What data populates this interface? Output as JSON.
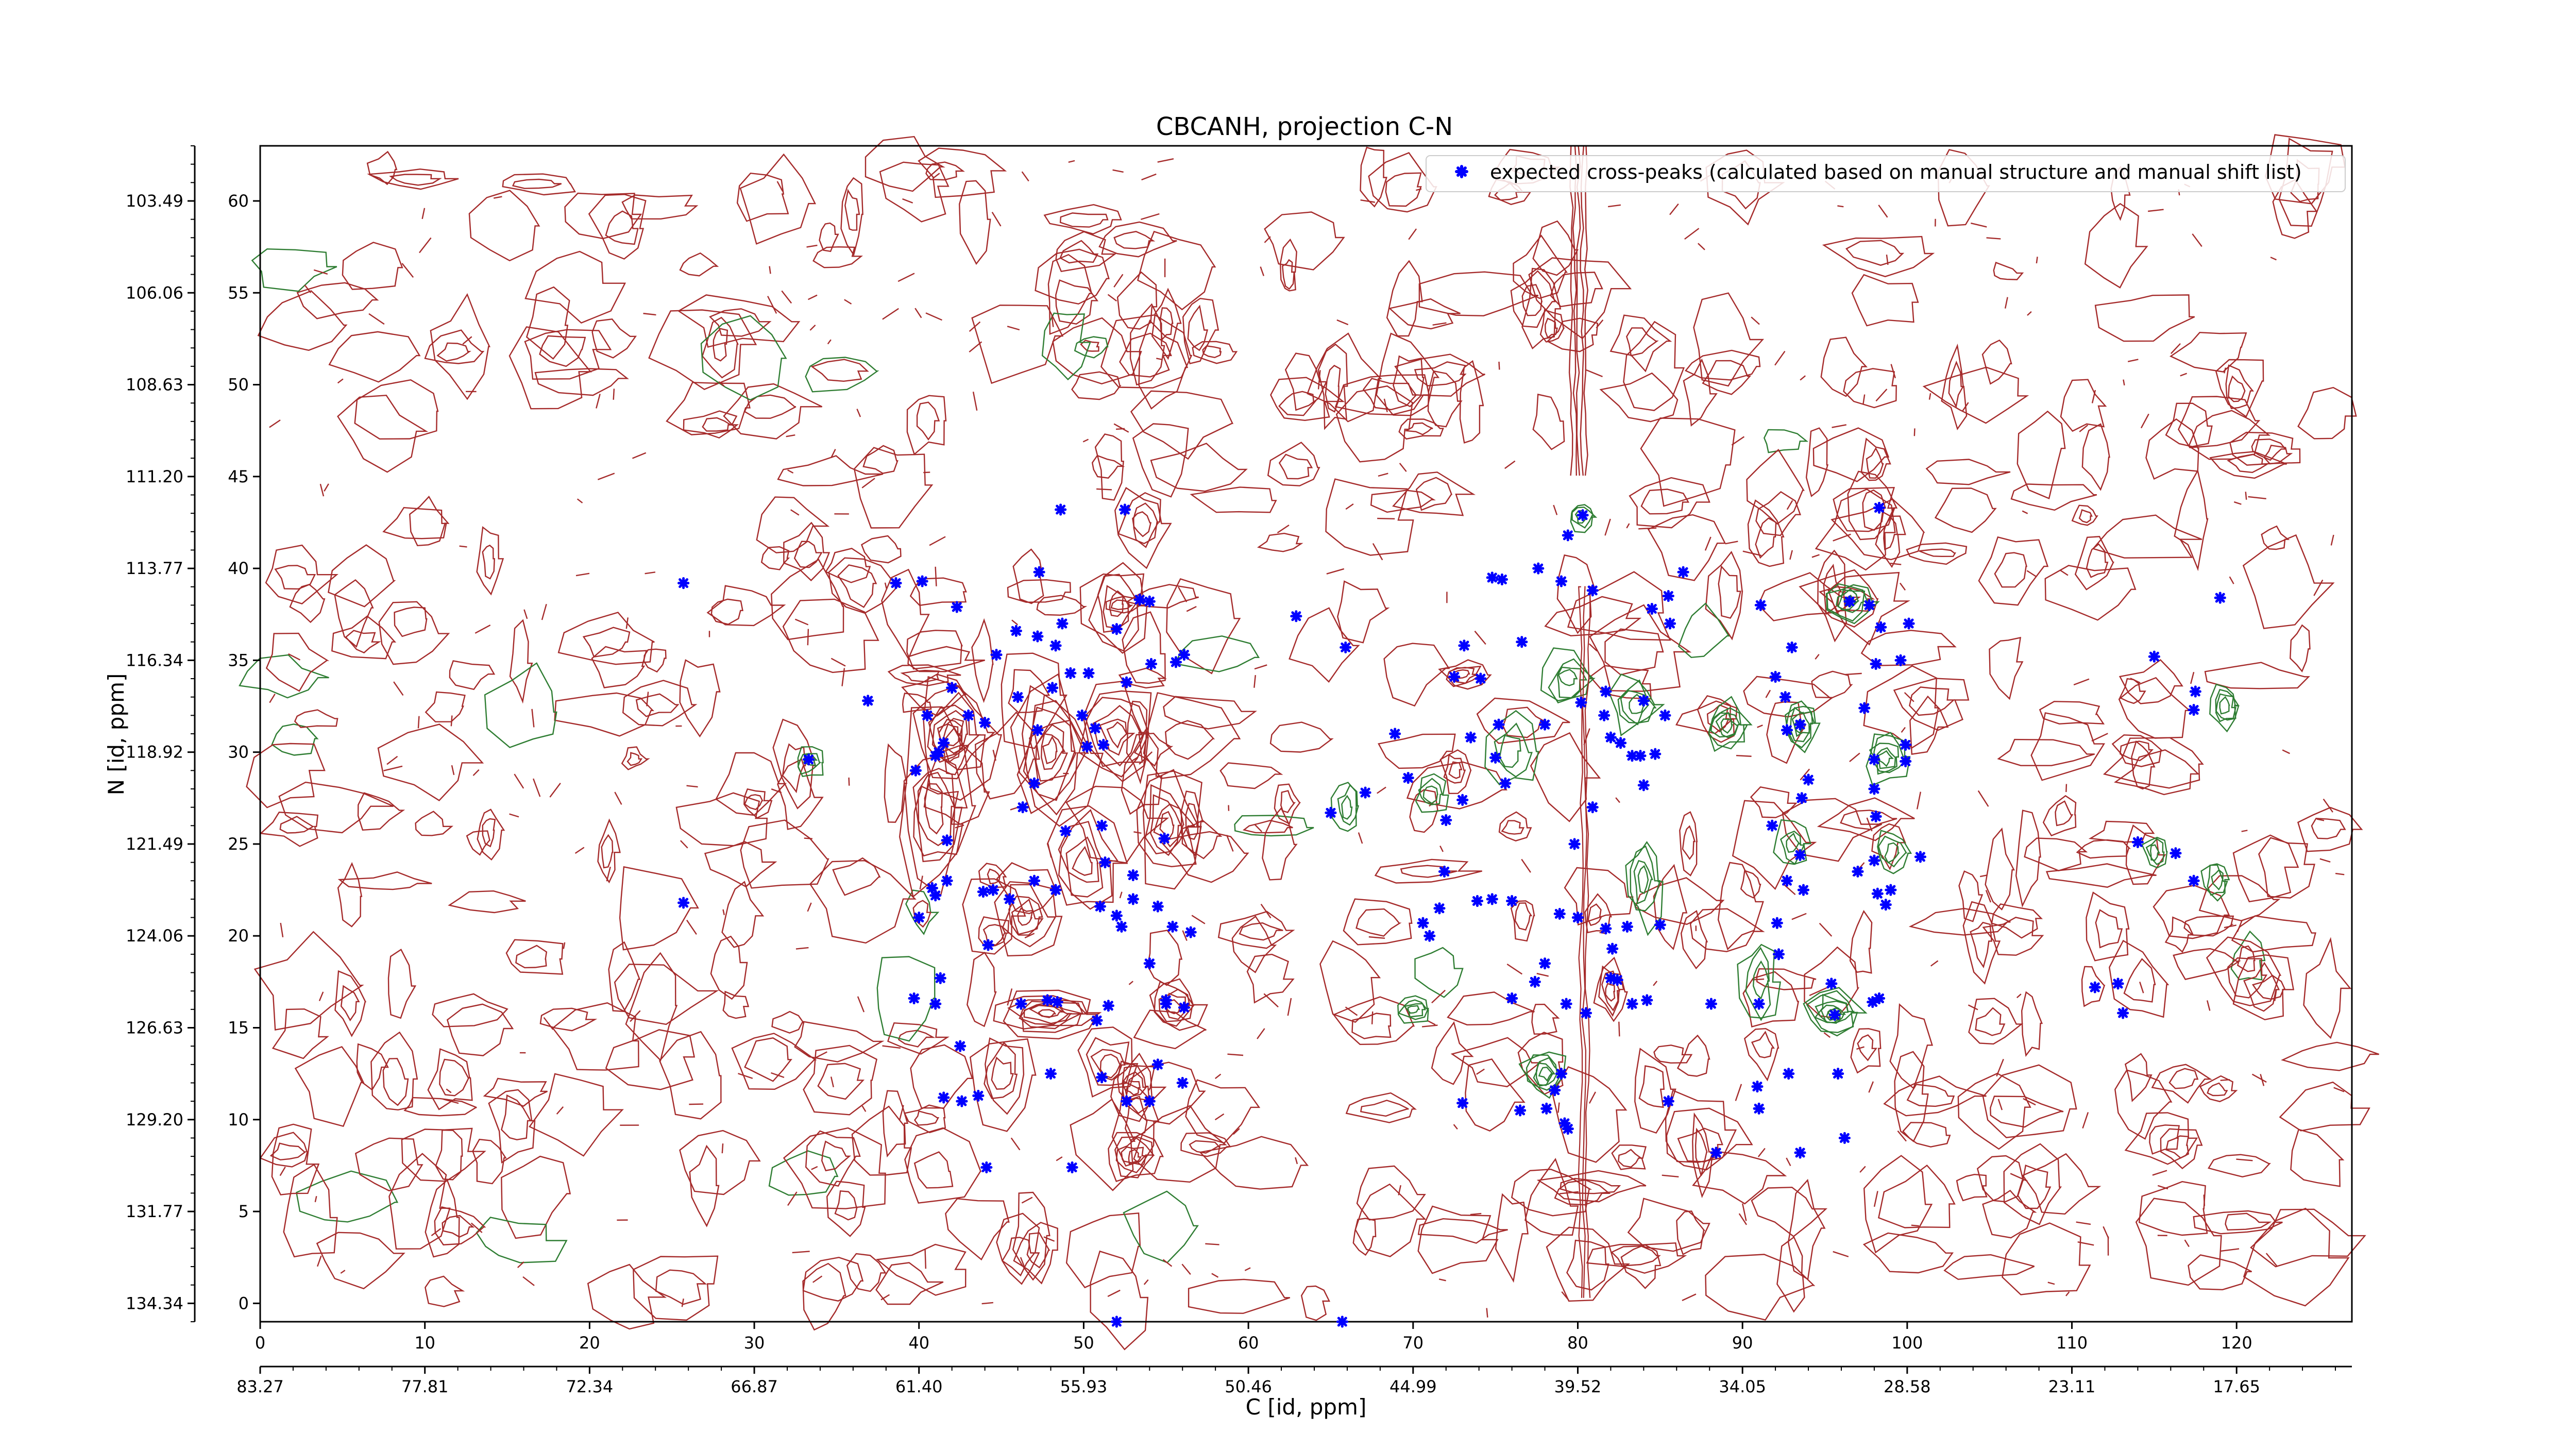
{
  "chart_data": {
    "type": "scatter",
    "title": "CBCANH, projection C-N",
    "xlabel": "C [id, ppm]",
    "ylabel": "N [id, ppm]",
    "xlim": [
      0,
      127
    ],
    "ylim": [
      -1,
      63
    ],
    "x_ticks": [
      0,
      10,
      20,
      30,
      40,
      50,
      60,
      70,
      80,
      90,
      100,
      110,
      120
    ],
    "y_ticks": [
      0,
      5,
      10,
      15,
      20,
      25,
      30,
      35,
      40,
      45,
      50,
      55,
      60
    ],
    "x_ppm_ticks": [
      "83.27",
      "77.81",
      "72.34",
      "66.87",
      "61.40",
      "55.93",
      "50.46",
      "44.99",
      "39.52",
      "34.05",
      "28.58",
      "23.11",
      "17.65"
    ],
    "y_ppm_ticks": [
      "134.34",
      "131.77",
      "129.20",
      "126.63",
      "124.06",
      "121.49",
      "118.92",
      "116.34",
      "113.77",
      "111.20",
      "108.63",
      "106.06",
      "103.49"
    ],
    "legend": {
      "position": "top-right",
      "marker_color": "#0000ff"
    },
    "contour_colors": {
      "positive": "#a52a2a",
      "negative": "#2e7d32"
    },
    "series": [
      {
        "name": "expected cross-peaks (calculated based on manual structure and manual shift list)",
        "points": [
          [
            25.7,
            39.2
          ],
          [
            25.7,
            21.8
          ],
          [
            33.3,
            29.6
          ],
          [
            36.9,
            32.8
          ],
          [
            38.6,
            39.2
          ],
          [
            40.2,
            39.3
          ],
          [
            40.5,
            32.0
          ],
          [
            41.2,
            30.0
          ],
          [
            41.5,
            30.5
          ],
          [
            41.0,
            29.8
          ],
          [
            39.8,
            29.0
          ],
          [
            41.7,
            25.2
          ],
          [
            40.8,
            22.6
          ],
          [
            41.0,
            22.2
          ],
          [
            41.7,
            23.0
          ],
          [
            40.0,
            21.0
          ],
          [
            39.7,
            16.6
          ],
          [
            41.0,
            16.3
          ],
          [
            41.3,
            17.7
          ],
          [
            41.5,
            11.2
          ],
          [
            42.6,
            11.0
          ],
          [
            43.6,
            11.3
          ],
          [
            42.5,
            14.0
          ],
          [
            44.2,
            19.5
          ],
          [
            43.9,
            22.4
          ],
          [
            44.0,
            31.6
          ],
          [
            43.0,
            32.0
          ],
          [
            42.0,
            33.5
          ],
          [
            42.3,
            37.9
          ],
          [
            44.7,
            35.3
          ],
          [
            45.9,
            36.6
          ],
          [
            47.2,
            36.3
          ],
          [
            48.7,
            37.0
          ],
          [
            46.0,
            33.0
          ],
          [
            48.1,
            33.5
          ],
          [
            49.2,
            34.3
          ],
          [
            50.3,
            34.3
          ],
          [
            49.9,
            32.0
          ],
          [
            50.7,
            31.3
          ],
          [
            50.2,
            30.3
          ],
          [
            51.2,
            30.4
          ],
          [
            47.2,
            31.2
          ],
          [
            47.0,
            28.3
          ],
          [
            46.3,
            27.0
          ],
          [
            48.9,
            25.7
          ],
          [
            51.1,
            26.0
          ],
          [
            51.3,
            24.0
          ],
          [
            53.0,
            23.3
          ],
          [
            54.9,
            25.3
          ],
          [
            51.0,
            21.6
          ],
          [
            52.0,
            21.1
          ],
          [
            53.0,
            22.0
          ],
          [
            54.5,
            21.6
          ],
          [
            55.4,
            20.5
          ],
          [
            56.5,
            20.2
          ],
          [
            54.0,
            18.5
          ],
          [
            46.2,
            16.3
          ],
          [
            47.8,
            16.5
          ],
          [
            48.4,
            16.4
          ],
          [
            50.8,
            15.4
          ],
          [
            48.0,
            12.5
          ],
          [
            51.1,
            12.3
          ],
          [
            52.6,
            11.0
          ],
          [
            54.0,
            11.0
          ],
          [
            56.0,
            12.0
          ],
          [
            54.5,
            13.0
          ],
          [
            51.5,
            16.2
          ],
          [
            55.0,
            16.3
          ],
          [
            56.1,
            16.1
          ],
          [
            55.0,
            16.5
          ],
          [
            52.3,
            20.5
          ],
          [
            48.3,
            22.5
          ],
          [
            47.0,
            23.0
          ],
          [
            45.5,
            22.0
          ],
          [
            44.5,
            22.5
          ],
          [
            49.3,
            7.4
          ],
          [
            44.1,
            7.4
          ],
          [
            52.5,
            43.2
          ],
          [
            48.6,
            43.2
          ],
          [
            47.3,
            39.8
          ],
          [
            53.4,
            38.3
          ],
          [
            54.0,
            38.2
          ],
          [
            52.0,
            36.7
          ],
          [
            54.1,
            34.8
          ],
          [
            52.6,
            33.8
          ],
          [
            56.1,
            35.3
          ],
          [
            55.6,
            34.9
          ],
          [
            48.3,
            35.8
          ],
          [
            62.9,
            37.4
          ],
          [
            65.9,
            35.7
          ],
          [
            65.0,
            26.7
          ],
          [
            67.1,
            27.8
          ],
          [
            68.9,
            31.0
          ],
          [
            69.7,
            28.6
          ],
          [
            73.1,
            35.8
          ],
          [
            72.5,
            34.1
          ],
          [
            74.1,
            34.0
          ],
          [
            75.2,
            31.5
          ],
          [
            75.0,
            29.7
          ],
          [
            73.5,
            30.8
          ],
          [
            73.0,
            27.4
          ],
          [
            72.0,
            26.3
          ],
          [
            71.9,
            23.5
          ],
          [
            71.6,
            21.5
          ],
          [
            70.6,
            20.7
          ],
          [
            71.0,
            20.0
          ],
          [
            73.9,
            21.9
          ],
          [
            74.8,
            22.0
          ],
          [
            76.0,
            21.9
          ],
          [
            75.6,
            28.3
          ],
          [
            76.6,
            36.0
          ],
          [
            74.8,
            39.5
          ],
          [
            75.4,
            39.4
          ],
          [
            77.6,
            40.0
          ],
          [
            79.4,
            41.8
          ],
          [
            80.3,
            42.9
          ],
          [
            79.0,
            39.3
          ],
          [
            80.9,
            38.8
          ],
          [
            81.7,
            33.3
          ],
          [
            80.2,
            32.7
          ],
          [
            78.0,
            31.5
          ],
          [
            81.6,
            32.0
          ],
          [
            82.0,
            30.8
          ],
          [
            82.6,
            30.5
          ],
          [
            83.3,
            29.8
          ],
          [
            83.8,
            29.8
          ],
          [
            84.7,
            29.9
          ],
          [
            84.0,
            32.8
          ],
          [
            85.3,
            32.0
          ],
          [
            84.5,
            37.8
          ],
          [
            85.5,
            38.5
          ],
          [
            85.6,
            37.0
          ],
          [
            86.4,
            39.8
          ],
          [
            84.0,
            28.2
          ],
          [
            80.9,
            27.0
          ],
          [
            79.8,
            25.0
          ],
          [
            78.9,
            21.2
          ],
          [
            80.0,
            21.0
          ],
          [
            81.7,
            20.4
          ],
          [
            83.0,
            20.5
          ],
          [
            82.1,
            19.3
          ],
          [
            82.0,
            17.7
          ],
          [
            82.4,
            17.6
          ],
          [
            83.3,
            16.3
          ],
          [
            84.2,
            16.5
          ],
          [
            85.0,
            20.6
          ],
          [
            80.5,
            15.8
          ],
          [
            79.3,
            16.3
          ],
          [
            78.0,
            18.5
          ],
          [
            77.4,
            17.5
          ],
          [
            76.0,
            16.6
          ],
          [
            79.0,
            12.5
          ],
          [
            78.6,
            11.6
          ],
          [
            78.1,
            10.6
          ],
          [
            79.2,
            9.8
          ],
          [
            73.0,
            10.9
          ],
          [
            76.5,
            10.5
          ],
          [
            79.4,
            9.5
          ],
          [
            85.5,
            11.0
          ],
          [
            88.1,
            16.3
          ],
          [
            88.4,
            8.2
          ],
          [
            91.0,
            10.6
          ],
          [
            90.9,
            11.8
          ],
          [
            91.0,
            16.3
          ],
          [
            92.1,
            20.7
          ],
          [
            92.2,
            19.0
          ],
          [
            95.4,
            17.4
          ],
          [
            97.9,
            16.4
          ],
          [
            98.3,
            16.6
          ],
          [
            95.6,
            15.7
          ],
          [
            92.8,
            12.5
          ],
          [
            93.5,
            8.2
          ],
          [
            95.8,
            12.5
          ],
          [
            96.2,
            9.0
          ],
          [
            99.9,
            30.4
          ],
          [
            99.9,
            29.5
          ],
          [
            98.0,
            29.6
          ],
          [
            98.0,
            28.0
          ],
          [
            98.1,
            26.5
          ],
          [
            100.8,
            24.3
          ],
          [
            98.0,
            24.1
          ],
          [
            97.4,
            32.4
          ],
          [
            98.1,
            34.8
          ],
          [
            97.7,
            38.0
          ],
          [
            98.4,
            36.8
          ],
          [
            100.1,
            37.0
          ],
          [
            99.6,
            35.0
          ],
          [
            92.0,
            34.1
          ],
          [
            93.0,
            35.7
          ],
          [
            92.6,
            33.0
          ],
          [
            92.7,
            31.2
          ],
          [
            93.5,
            31.5
          ],
          [
            94.0,
            28.5
          ],
          [
            93.6,
            27.5
          ],
          [
            91.8,
            26.0
          ],
          [
            93.5,
            24.4
          ],
          [
            92.7,
            23.0
          ],
          [
            93.7,
            22.5
          ],
          [
            97.0,
            23.5
          ],
          [
            98.2,
            22.3
          ],
          [
            99.0,
            22.5
          ],
          [
            98.7,
            21.7
          ],
          [
            96.5,
            38.2
          ],
          [
            91.1,
            38.0
          ],
          [
            98.3,
            43.3
          ],
          [
            111.4,
            17.2
          ],
          [
            112.8,
            17.4
          ],
          [
            113.1,
            15.8
          ],
          [
            115.0,
            35.2
          ],
          [
            114.0,
            25.1
          ],
          [
            117.4,
            23.0
          ],
          [
            117.4,
            32.3
          ],
          [
            117.5,
            33.3
          ],
          [
            119.0,
            38.4
          ],
          [
            116.3,
            24.5
          ],
          [
            65.7,
            -1.0
          ],
          [
            52.0,
            -1.0
          ]
        ]
      }
    ]
  }
}
